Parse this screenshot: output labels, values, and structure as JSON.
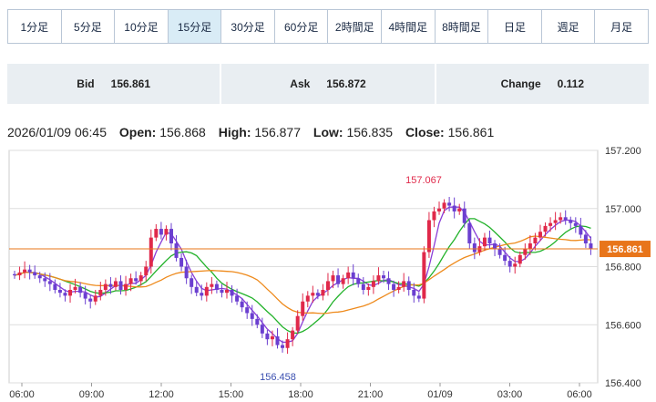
{
  "tabs": [
    "1分足",
    "5分足",
    "10分足",
    "15分足",
    "30分足",
    "60分足",
    "2時間足",
    "4時間足",
    "8時間足",
    "日足",
    "週足",
    "月足"
  ],
  "active_tab": "15分足",
  "quote": {
    "bid_label": "Bid",
    "bid_value": "156.861",
    "ask_label": "Ask",
    "ask_value": "156.872",
    "change_label": "Change",
    "change_value": "0.112"
  },
  "ohlc": {
    "datetime": "2026/01/09 06:45",
    "open_label": "Open:",
    "open_value": "156.868",
    "high_label": "High:",
    "high_value": "156.877",
    "low_label": "Low:",
    "low_value": "156.835",
    "close_label": "Close:",
    "close_value": "156.861"
  },
  "colors": {
    "up": "#e0294a",
    "down": "#6b3fd0",
    "ma_fast": "#8a3ed8",
    "ma_mid": "#22b22a",
    "ma_slow": "#ee8a1c",
    "price_line": "#e8751a",
    "grid": "#dddddd"
  },
  "chart_data": {
    "type": "candlestick",
    "ylim": [
      156.4,
      157.2
    ],
    "y_ticks": [
      "157.200",
      "157.000",
      "156.800",
      "156.600",
      "156.400"
    ],
    "x_ticks": [
      "06:00",
      "09:00",
      "12:00",
      "15:00",
      "18:00",
      "21:00",
      "01/09",
      "03:00",
      "06:00"
    ],
    "current_price": "156.861",
    "annotations": {
      "high": "157.067",
      "low": "156.458"
    },
    "closes": [
      156.77,
      156.78,
      156.79,
      156.78,
      156.77,
      156.76,
      156.75,
      156.74,
      156.72,
      156.71,
      156.7,
      156.72,
      156.73,
      156.71,
      156.69,
      156.68,
      156.7,
      156.72,
      156.74,
      156.73,
      156.75,
      156.72,
      156.74,
      156.76,
      156.75,
      156.77,
      156.8,
      156.9,
      156.93,
      156.91,
      156.93,
      156.88,
      156.83,
      156.8,
      156.76,
      156.73,
      156.71,
      156.7,
      156.73,
      156.74,
      156.72,
      156.71,
      156.72,
      156.7,
      156.68,
      156.66,
      156.64,
      156.62,
      156.6,
      156.57,
      156.55,
      156.56,
      156.53,
      156.52,
      156.55,
      156.58,
      156.63,
      156.68,
      156.7,
      156.71,
      156.7,
      156.72,
      156.75,
      156.77,
      156.74,
      156.76,
      156.78,
      156.76,
      156.74,
      156.72,
      156.73,
      156.75,
      156.77,
      156.76,
      156.74,
      156.72,
      156.73,
      156.75,
      156.72,
      156.7,
      156.69,
      156.85,
      156.96,
      156.99,
      157.0,
      157.02,
      157.01,
      156.99,
      157.0,
      156.95,
      156.88,
      156.85,
      156.87,
      156.9,
      156.88,
      156.86,
      156.84,
      156.82,
      156.8,
      156.81,
      156.84,
      156.86,
      156.88,
      156.9,
      156.92,
      156.94,
      156.95,
      156.96,
      156.97,
      156.96,
      156.95,
      156.94,
      156.91,
      156.88,
      156.86
    ]
  }
}
